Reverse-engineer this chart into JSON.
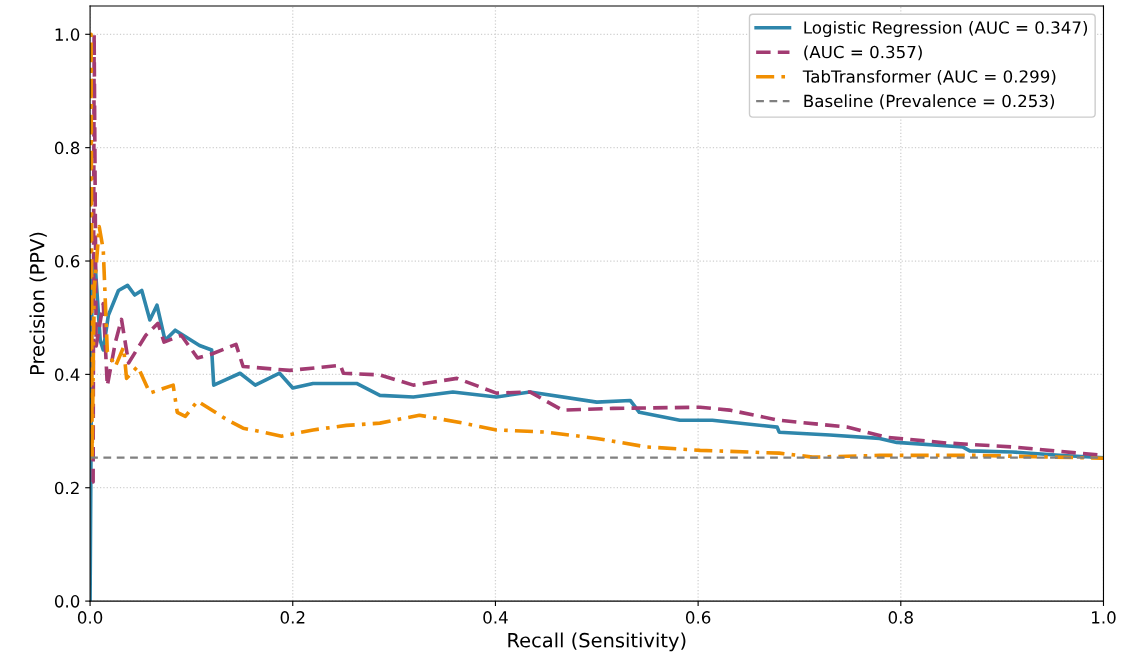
{
  "chart_data": {
    "type": "line",
    "xlabel": "Recall (Sensitivity)",
    "ylabel": "Precision (PPV)",
    "xlim": [
      0,
      1
    ],
    "ylim": [
      0,
      1.05
    ],
    "xticks": [
      {
        "value": 0,
        "label": "0.0"
      },
      0.2,
      0.4,
      0.6,
      0.8,
      {
        "value": 1,
        "label": "1.0"
      }
    ],
    "yticks": [
      {
        "value": 0,
        "label": "0.0"
      },
      0.2,
      0.4,
      0.6,
      0.8,
      {
        "value": 1,
        "label": "1.0"
      }
    ],
    "grid": true,
    "legend": "top right",
    "series": [
      {
        "name": "Logistic Regression (AUC = 0.347)",
        "color": "#2e86ab",
        "line_style": "solid",
        "x": [
          0,
          0.002,
          0.005,
          0.01,
          0.013,
          0.018,
          0.028,
          0.037,
          0.044,
          0.051,
          0.059,
          0.066,
          0.074,
          0.084,
          0.108,
          0.12,
          0.122,
          0.133,
          0.148,
          0.163,
          0.187,
          0.2,
          0.22,
          0.263,
          0.286,
          0.319,
          0.358,
          0.401,
          0.434,
          0.5,
          0.533,
          0.542,
          0.582,
          0.614,
          0.678,
          0.68,
          0.73,
          0.779,
          0.796,
          0.861,
          0.868,
          0.91,
          0.96,
          1.0
        ],
        "values": [
          0,
          0.6,
          0.593,
          0.46,
          0.443,
          0.504,
          0.548,
          0.557,
          0.54,
          0.548,
          0.496,
          0.522,
          0.46,
          0.478,
          0.451,
          0.443,
          0.381,
          0.39,
          0.402,
          0.381,
          0.402,
          0.376,
          0.384,
          0.384,
          0.363,
          0.36,
          0.369,
          0.36,
          0.369,
          0.351,
          0.354,
          0.333,
          0.319,
          0.319,
          0.307,
          0.298,
          0.293,
          0.287,
          0.28,
          0.272,
          0.265,
          0.263,
          0.257,
          0.253
        ]
      },
      {
        "name": "(AUC = 0.357)",
        "color": "#a23b72",
        "line_style": "dashed",
        "x": [
          0.002,
          0.003,
          0.004,
          0.006,
          0.013,
          0.017,
          0.025,
          0.031,
          0.038,
          0.055,
          0.067,
          0.073,
          0.09,
          0.106,
          0.12,
          0.144,
          0.151,
          0.197,
          0.247,
          0.25,
          0.286,
          0.319,
          0.362,
          0.401,
          0.434,
          0.466,
          0.516,
          0.602,
          0.631,
          0.68,
          0.747,
          0.786,
          0.845,
          0.91,
          1.0
        ],
        "values": [
          0.21,
          0.21,
          1.0,
          0.45,
          0.525,
          0.38,
          0.457,
          0.497,
          0.42,
          0.469,
          0.49,
          0.457,
          0.469,
          0.429,
          0.436,
          0.453,
          0.414,
          0.407,
          0.416,
          0.402,
          0.399,
          0.381,
          0.393,
          0.367,
          0.369,
          0.337,
          0.34,
          0.342,
          0.337,
          0.319,
          0.307,
          0.289,
          0.279,
          0.272,
          0.257
        ]
      },
      {
        "name": "TabTransformer (AUC = 0.299)",
        "color": "#f18f01",
        "line_style": "dashdot",
        "x": [
          0,
          0.001,
          0.002,
          0.004,
          0.006,
          0.009,
          0.013,
          0.017,
          0.025,
          0.033,
          0.036,
          0.047,
          0.059,
          0.082,
          0.086,
          0.094,
          0.106,
          0.136,
          0.151,
          0.171,
          0.189,
          0.22,
          0.253,
          0.286,
          0.325,
          0.368,
          0.401,
          0.451,
          0.5,
          0.549,
          0.602,
          0.68,
          0.713,
          0.779,
          0.878,
          1.0
        ],
        "values": [
          0.25,
          1.0,
          0.25,
          0.55,
          0.59,
          0.661,
          0.62,
          0.441,
          0.414,
          0.448,
          0.393,
          0.414,
          0.367,
          0.381,
          0.333,
          0.326,
          0.353,
          0.319,
          0.305,
          0.298,
          0.291,
          0.302,
          0.31,
          0.314,
          0.328,
          0.314,
          0.302,
          0.298,
          0.287,
          0.272,
          0.266,
          0.261,
          0.254,
          0.257,
          0.257,
          0.252
        ]
      }
    ],
    "ref_lines": [
      {
        "axis": "y",
        "value": 0.253,
        "label": "Baseline (Prevalence = 0.253)",
        "color": "#808080",
        "line_style": "dashed"
      }
    ]
  }
}
